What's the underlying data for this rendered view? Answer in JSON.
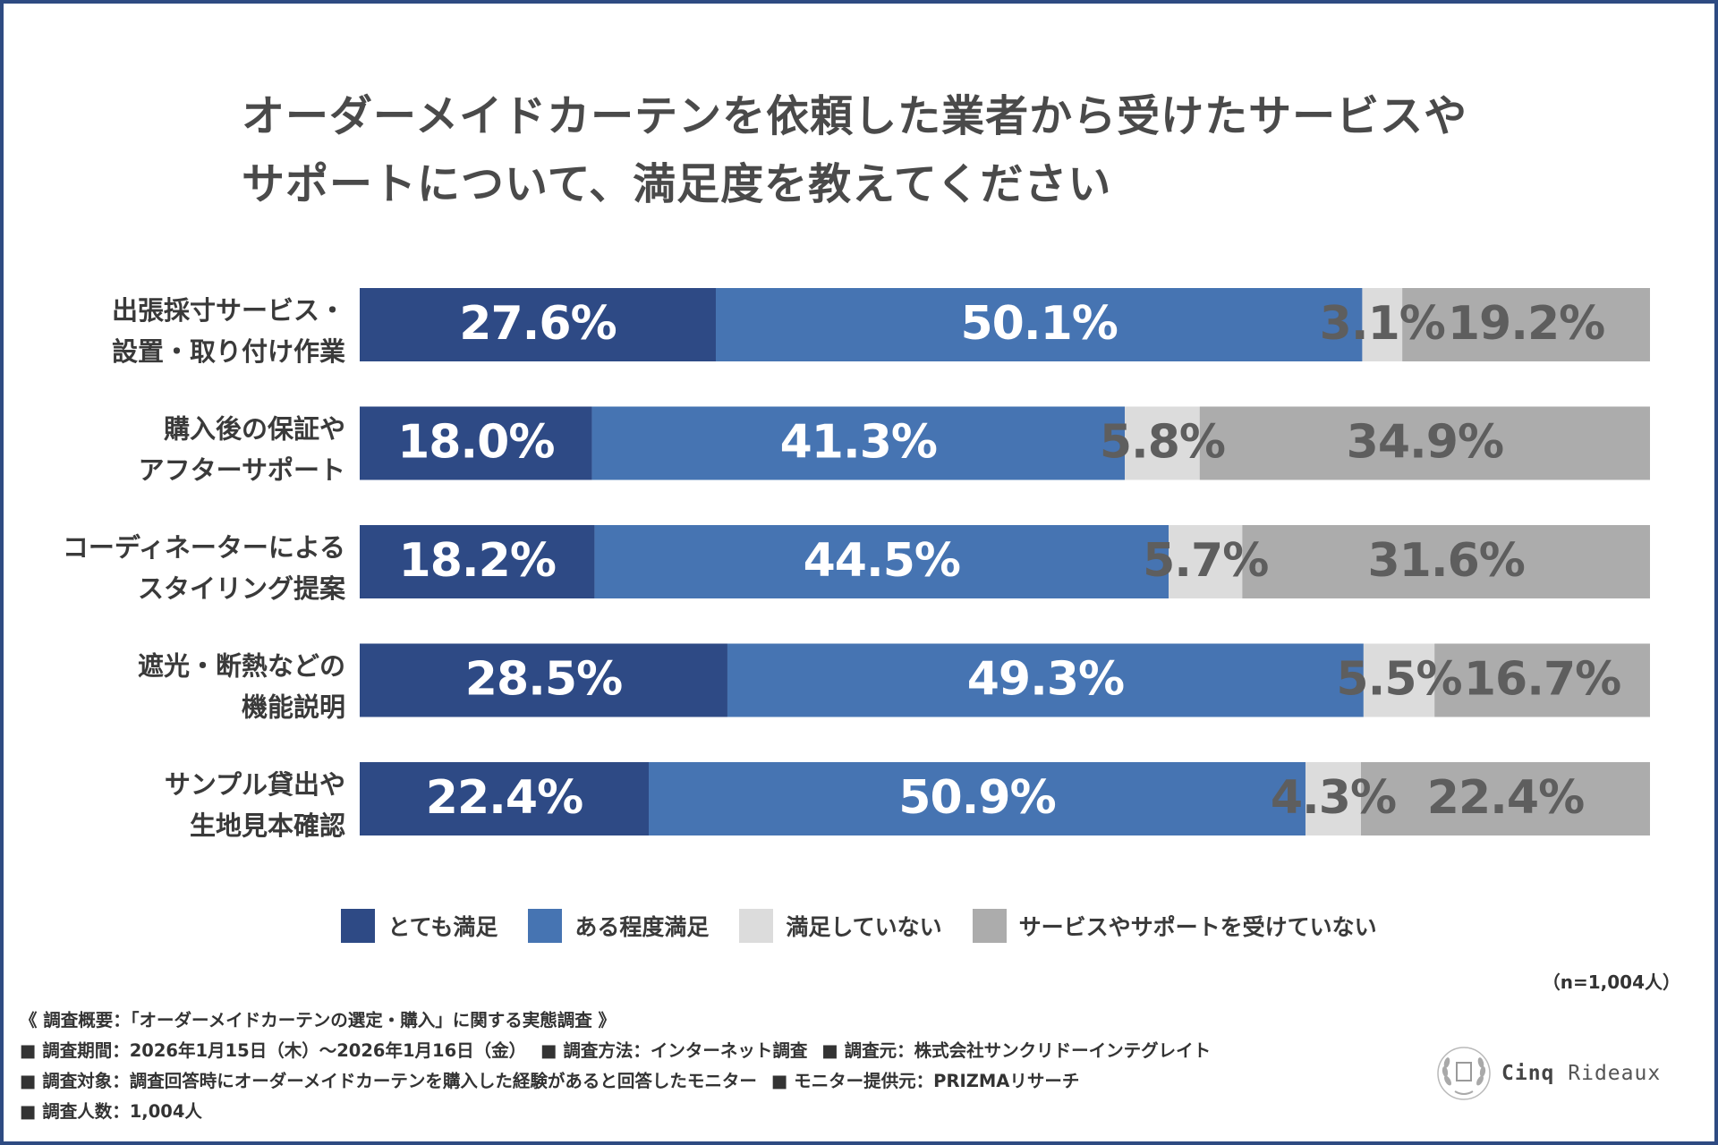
{
  "title": {
    "line1": "オーダーメイドカーテンを依頼した業者から受けたサービスや",
    "line2": "サポートについて、満足度を教えてください"
  },
  "colors": {
    "very_satisfied": "#2e4a85",
    "somewhat_satisfied": "#4674b2",
    "not_satisfied": "#dcdcdc",
    "not_received": "#acacac",
    "label_light": "#ffffff",
    "label_dark": "#5e5e5e",
    "frame": "#2e4b82"
  },
  "chart_data": {
    "type": "bar",
    "orientation": "horizontal",
    "stacked": true,
    "percent_stacked": true,
    "xlim": [
      0,
      100
    ],
    "unit": "%",
    "categories": [
      [
        "出張採寸サービス・",
        "設置・取り付け作業"
      ],
      [
        "購入後の保証や",
        "アフターサポート"
      ],
      [
        "コーディネーターによる",
        "スタイリング提案"
      ],
      [
        "遮光・断熱などの",
        "機能説明"
      ],
      [
        "サンプル貸出や",
        "生地見本確認"
      ]
    ],
    "series": [
      {
        "name": "とても満足",
        "color_key": "very_satisfied",
        "label_key": "label_light",
        "values": [
          27.6,
          18.0,
          18.2,
          28.5,
          22.4
        ],
        "labels": [
          "27.6%",
          "18.0%",
          "18.2%",
          "28.5%",
          "22.4%"
        ]
      },
      {
        "name": "ある程度満足",
        "color_key": "somewhat_satisfied",
        "label_key": "label_light",
        "values": [
          50.1,
          41.3,
          44.5,
          49.3,
          50.9
        ],
        "labels": [
          "50.1%",
          "41.3%",
          "44.5%",
          "49.3%",
          "50.9%"
        ]
      },
      {
        "name": "満足していない",
        "color_key": "not_satisfied",
        "label_key": "label_dark",
        "values": [
          3.1,
          5.8,
          5.7,
          5.5,
          4.3
        ],
        "labels": [
          "3.1%",
          "5.8%",
          "5.7%",
          "5.5%",
          "4.3%"
        ]
      },
      {
        "name": "サービスやサポートを受けていない",
        "color_key": "not_received",
        "label_key": "label_dark",
        "values": [
          19.2,
          34.9,
          31.6,
          16.7,
          22.4
        ],
        "labels": [
          "19.2%",
          "34.9%",
          "31.6%",
          "16.7%",
          "22.4%"
        ]
      }
    ],
    "legend": [
      "とても満足",
      "ある程度満足",
      "満足していない",
      "サービスやサポートを受けていない"
    ],
    "legend_position": "bottom-center"
  },
  "sample_size": "（n=1,004人）",
  "notes": {
    "heading": "《 調査概要：「オーダーメイドカーテンの選定・購入」に関する実態調査 》",
    "period": "■ 調査期間：2026年1月15日（木）～2026年1月16日（金）",
    "method": "■ 調査方法：インターネット調査",
    "source": "■ 調査元：株式会社サンクリドーインテグレイト",
    "subjects": "■ 調査対象：調査回答時にオーダーメイドカーテンを購入した経験があると回答したモニター",
    "provider": "■ モニター提供元：PRIZMAリサーチ",
    "count": "■ 調査人数：1,004人"
  },
  "brand": {
    "name_bold": "Cinq",
    "name_rest": "Rideaux",
    "logo_icon": "laurel-wreath-crest-icon"
  }
}
